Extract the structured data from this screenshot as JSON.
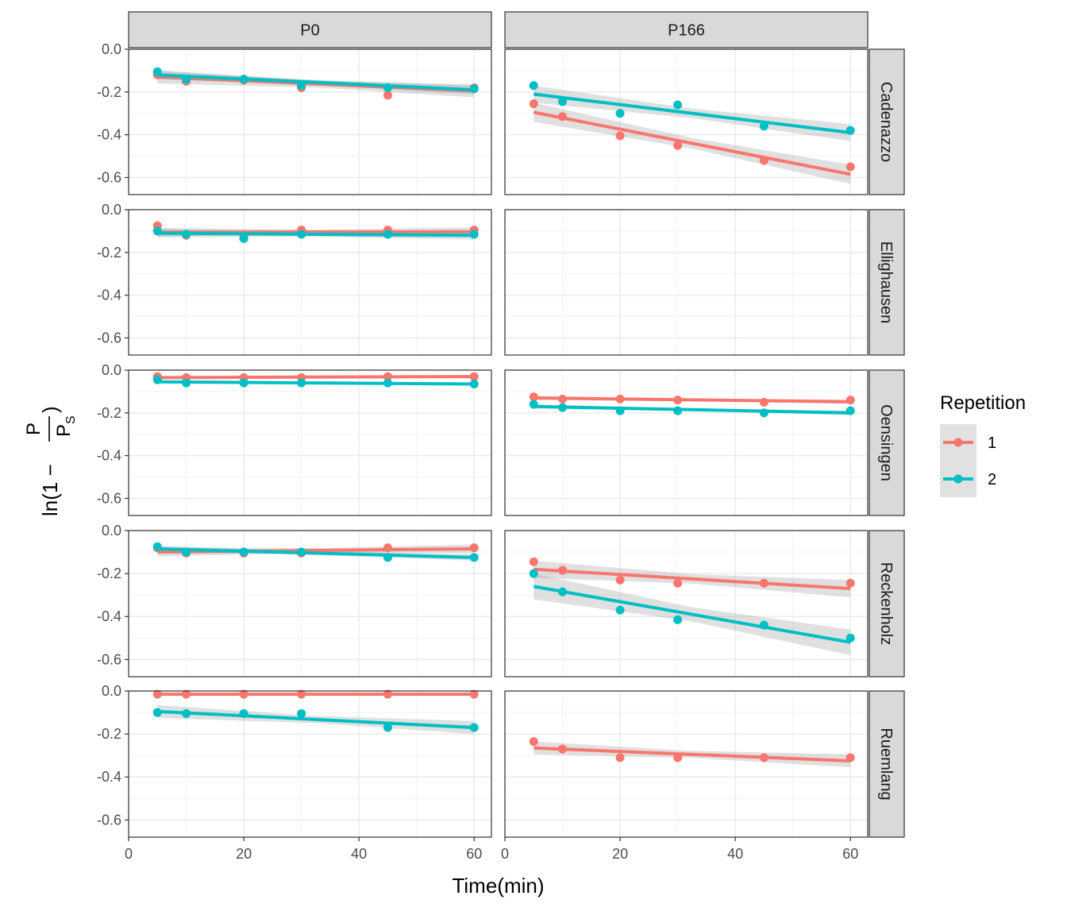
{
  "chart_data": {
    "type": "scatter",
    "facet_columns": [
      "P0",
      "P166"
    ],
    "facet_rows": [
      "Cadenazzo",
      "Ellighausen",
      "Oensingen",
      "Reckenholz",
      "Ruemlang"
    ],
    "xlabel": "Time(min)",
    "ylabel": "ln(1 - P/PS)",
    "ylabel_parts": {
      "prefix": "ln(1 − ",
      "num": "P",
      "den": "P",
      "den_sub": "S",
      "suffix": ")"
    },
    "xlim": [
      0,
      63
    ],
    "ylim": [
      -0.68,
      0.0
    ],
    "x_ticks": [
      "0",
      "20",
      "40",
      "60"
    ],
    "x_tick_values": [
      0,
      20,
      40,
      60
    ],
    "y_ticks": [
      "0.0",
      "-0.2",
      "-0.4",
      "-0.6"
    ],
    "y_tick_values": [
      0.0,
      -0.2,
      -0.4,
      -0.6
    ],
    "grid": true,
    "smooth": "linear fit with confidence band",
    "legend": {
      "title": "Repetition",
      "position": "right",
      "entries": [
        {
          "label": "1",
          "color": "#F8766D"
        },
        {
          "label": "2",
          "color": "#00BFC4"
        }
      ]
    },
    "panels": [
      {
        "row": "Cadenazzo",
        "col": "P0",
        "series": [
          {
            "rep": "1",
            "x": [
              5,
              10,
              20,
              30,
              45,
              60
            ],
            "y": [
              -0.12,
              -0.15,
              -0.145,
              -0.18,
              -0.215,
              -0.18
            ],
            "fit": [
              -0.13,
              -0.195
            ],
            "band": 0.03
          },
          {
            "rep": "2",
            "x": [
              5,
              10,
              20,
              30,
              45,
              60
            ],
            "y": [
              -0.105,
              -0.14,
              -0.14,
              -0.17,
              -0.18,
              -0.185
            ],
            "fit": [
              -0.12,
              -0.19
            ],
            "band": 0.02
          }
        ]
      },
      {
        "row": "Cadenazzo",
        "col": "P166",
        "series": [
          {
            "rep": "1",
            "x": [
              5,
              10,
              20,
              30,
              45,
              60
            ],
            "y": [
              -0.255,
              -0.315,
              -0.405,
              -0.45,
              -0.52,
              -0.55
            ],
            "fit": [
              -0.295,
              -0.585
            ],
            "band": 0.045
          },
          {
            "rep": "2",
            "x": [
              5,
              10,
              20,
              30,
              45,
              60
            ],
            "y": [
              -0.17,
              -0.245,
              -0.3,
              -0.26,
              -0.36,
              -0.38
            ],
            "fit": [
              -0.21,
              -0.39
            ],
            "band": 0.04
          }
        ]
      },
      {
        "row": "Ellighausen",
        "col": "P0",
        "series": [
          {
            "rep": "1",
            "x": [
              5,
              10,
              20,
              30,
              45,
              60
            ],
            "y": [
              -0.075,
              -0.12,
              -0.125,
              -0.095,
              -0.095,
              -0.095
            ],
            "fit": [
              -0.105,
              -0.103
            ],
            "band": 0.02
          },
          {
            "rep": "2",
            "x": [
              5,
              10,
              20,
              30,
              45,
              60
            ],
            "y": [
              -0.1,
              -0.115,
              -0.135,
              -0.115,
              -0.115,
              -0.115
            ],
            "fit": [
              -0.11,
              -0.12
            ],
            "band": 0.02
          }
        ]
      },
      {
        "row": "Ellighausen",
        "col": "P166",
        "series": []
      },
      {
        "row": "Oensingen",
        "col": "P0",
        "series": [
          {
            "rep": "1",
            "x": [
              5,
              10,
              20,
              30,
              45,
              60
            ],
            "y": [
              -0.03,
              -0.035,
              -0.035,
              -0.035,
              -0.03,
              -0.03
            ],
            "fit": [
              -0.035,
              -0.03
            ],
            "band": 0.005
          },
          {
            "rep": "2",
            "x": [
              5,
              10,
              20,
              30,
              45,
              60
            ],
            "y": [
              -0.045,
              -0.06,
              -0.06,
              -0.06,
              -0.06,
              -0.065
            ],
            "fit": [
              -0.055,
              -0.065
            ],
            "band": 0.005
          }
        ]
      },
      {
        "row": "Oensingen",
        "col": "P166",
        "series": [
          {
            "rep": "1",
            "x": [
              5,
              10,
              20,
              30,
              45,
              60
            ],
            "y": [
              -0.125,
              -0.135,
              -0.135,
              -0.14,
              -0.15,
              -0.14
            ],
            "fit": [
              -0.13,
              -0.148
            ],
            "band": 0.01
          },
          {
            "rep": "2",
            "x": [
              5,
              10,
              20,
              30,
              45,
              60
            ],
            "y": [
              -0.16,
              -0.175,
              -0.19,
              -0.19,
              -0.2,
              -0.19
            ],
            "fit": [
              -0.17,
              -0.2
            ],
            "band": 0.01
          }
        ]
      },
      {
        "row": "Reckenholz",
        "col": "P0",
        "series": [
          {
            "rep": "1",
            "x": [
              5,
              10,
              20,
              30,
              45,
              60
            ],
            "y": [
              -0.08,
              -0.105,
              -0.105,
              -0.105,
              -0.08,
              -0.08
            ],
            "fit": [
              -0.1,
              -0.085
            ],
            "band": 0.02
          },
          {
            "rep": "2",
            "x": [
              5,
              10,
              20,
              30,
              45,
              60
            ],
            "y": [
              -0.075,
              -0.1,
              -0.1,
              -0.1,
              -0.125,
              -0.125
            ],
            "fit": [
              -0.085,
              -0.125
            ],
            "band": 0.015
          }
        ]
      },
      {
        "row": "Reckenholz",
        "col": "P166",
        "series": [
          {
            "rep": "1",
            "x": [
              5,
              10,
              20,
              30,
              45,
              60
            ],
            "y": [
              -0.145,
              -0.185,
              -0.23,
              -0.245,
              -0.245,
              -0.245
            ],
            "fit": [
              -0.18,
              -0.27
            ],
            "band": 0.04
          },
          {
            "rep": "2",
            "x": [
              5,
              10,
              20,
              30,
              45,
              60
            ],
            "y": [
              -0.2,
              -0.285,
              -0.37,
              -0.415,
              -0.44,
              -0.5
            ],
            "fit": [
              -0.26,
              -0.52
            ],
            "band": 0.06
          }
        ]
      },
      {
        "row": "Ruemlang",
        "col": "P0",
        "series": [
          {
            "rep": "1",
            "x": [
              5,
              10,
              20,
              30,
              45,
              60
            ],
            "y": [
              -0.015,
              -0.015,
              -0.015,
              -0.015,
              -0.015,
              -0.015
            ],
            "fit": [
              -0.015,
              -0.015
            ],
            "band": 0.003
          },
          {
            "rep": "2",
            "x": [
              5,
              10,
              20,
              30,
              45,
              60
            ],
            "y": [
              -0.1,
              -0.105,
              -0.105,
              -0.105,
              -0.17,
              -0.17
            ],
            "fit": [
              -0.095,
              -0.17
            ],
            "band": 0.03
          }
        ]
      },
      {
        "row": "Ruemlang",
        "col": "P166",
        "series": [
          {
            "rep": "1",
            "x": [
              5,
              10,
              20,
              30,
              45,
              60
            ],
            "y": [
              -0.235,
              -0.27,
              -0.31,
              -0.31,
              -0.31,
              -0.31
            ],
            "fit": [
              -0.265,
              -0.325
            ],
            "band": 0.03
          }
        ]
      }
    ]
  }
}
